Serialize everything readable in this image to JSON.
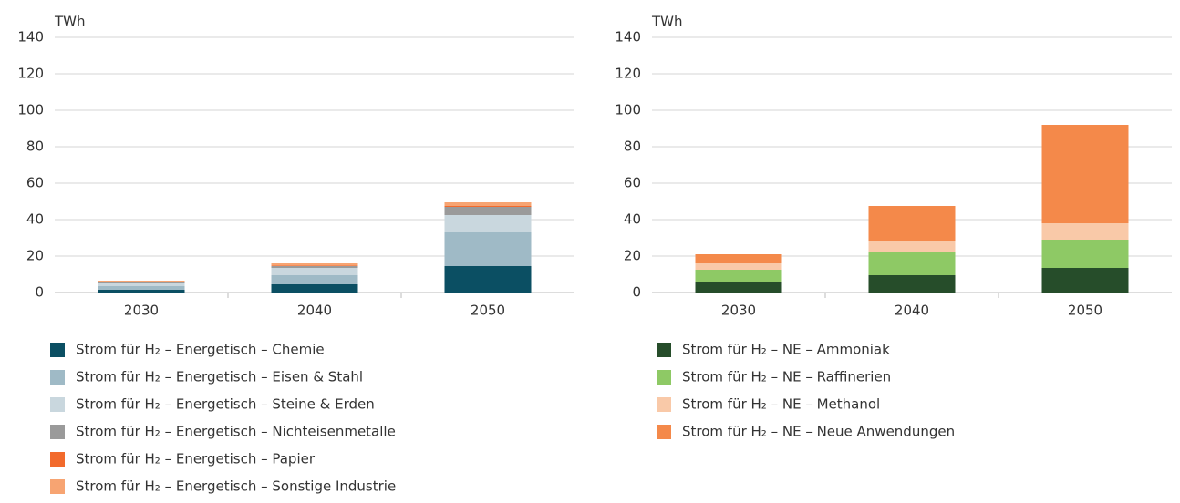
{
  "chart_data": [
    {
      "type": "bar",
      "stacked": true,
      "y_label": "TWh",
      "categories": [
        "2030",
        "2040",
        "2050"
      ],
      "ylim": [
        0,
        140
      ],
      "yticks": [
        0,
        20,
        40,
        60,
        80,
        100,
        120,
        140
      ],
      "grid": true,
      "series": [
        {
          "name": "Strom für H₂ – Energetisch – Chemie",
          "color": "#0b4f63",
          "values": [
            1.5,
            4.5,
            14.5
          ]
        },
        {
          "name": "Strom für H₂ – Energetisch – Eisen & Stahl",
          "color": "#9fbac6",
          "values": [
            2,
            5,
            18.5
          ]
        },
        {
          "name": "Strom für H₂ – Energetisch – Steine & Erden",
          "color": "#c9d7de",
          "values": [
            1.5,
            4,
            9.5
          ]
        },
        {
          "name": "Strom für H₂ – Energetisch – Nichteisenmetalle",
          "color": "#9a9a9a",
          "values": [
            0.5,
            1,
            4.5
          ]
        },
        {
          "name": "Strom für H₂ – Energetisch – Papier",
          "color": "#f26a2c",
          "values": [
            0.2,
            0.3,
            0.5
          ]
        },
        {
          "name": "Strom für H₂ – Energetisch – Sonstige Industrie",
          "color": "#f7a472",
          "values": [
            0.8,
            1.2,
            2
          ]
        }
      ]
    },
    {
      "type": "bar",
      "stacked": true,
      "y_label": "TWh",
      "categories": [
        "2030",
        "2040",
        "2050"
      ],
      "ylim": [
        0,
        140
      ],
      "yticks": [
        0,
        20,
        40,
        60,
        80,
        100,
        120,
        140
      ],
      "grid": true,
      "series": [
        {
          "name": "Strom für H₂ – NE – Ammoniak",
          "color": "#264d2a",
          "values": [
            5.5,
            9.5,
            13.5
          ]
        },
        {
          "name": "Strom für H₂ – NE – Raffinerien",
          "color": "#8ec965",
          "values": [
            7,
            12.5,
            15.5
          ]
        },
        {
          "name": "Strom für H₂ – NE – Methanol",
          "color": "#f9c9a8",
          "values": [
            3.5,
            6.5,
            9
          ]
        },
        {
          "name": "Strom für H₂ – NE – Neue Anwendungen",
          "color": "#f4894a",
          "values": [
            5,
            19,
            54
          ]
        }
      ]
    }
  ]
}
